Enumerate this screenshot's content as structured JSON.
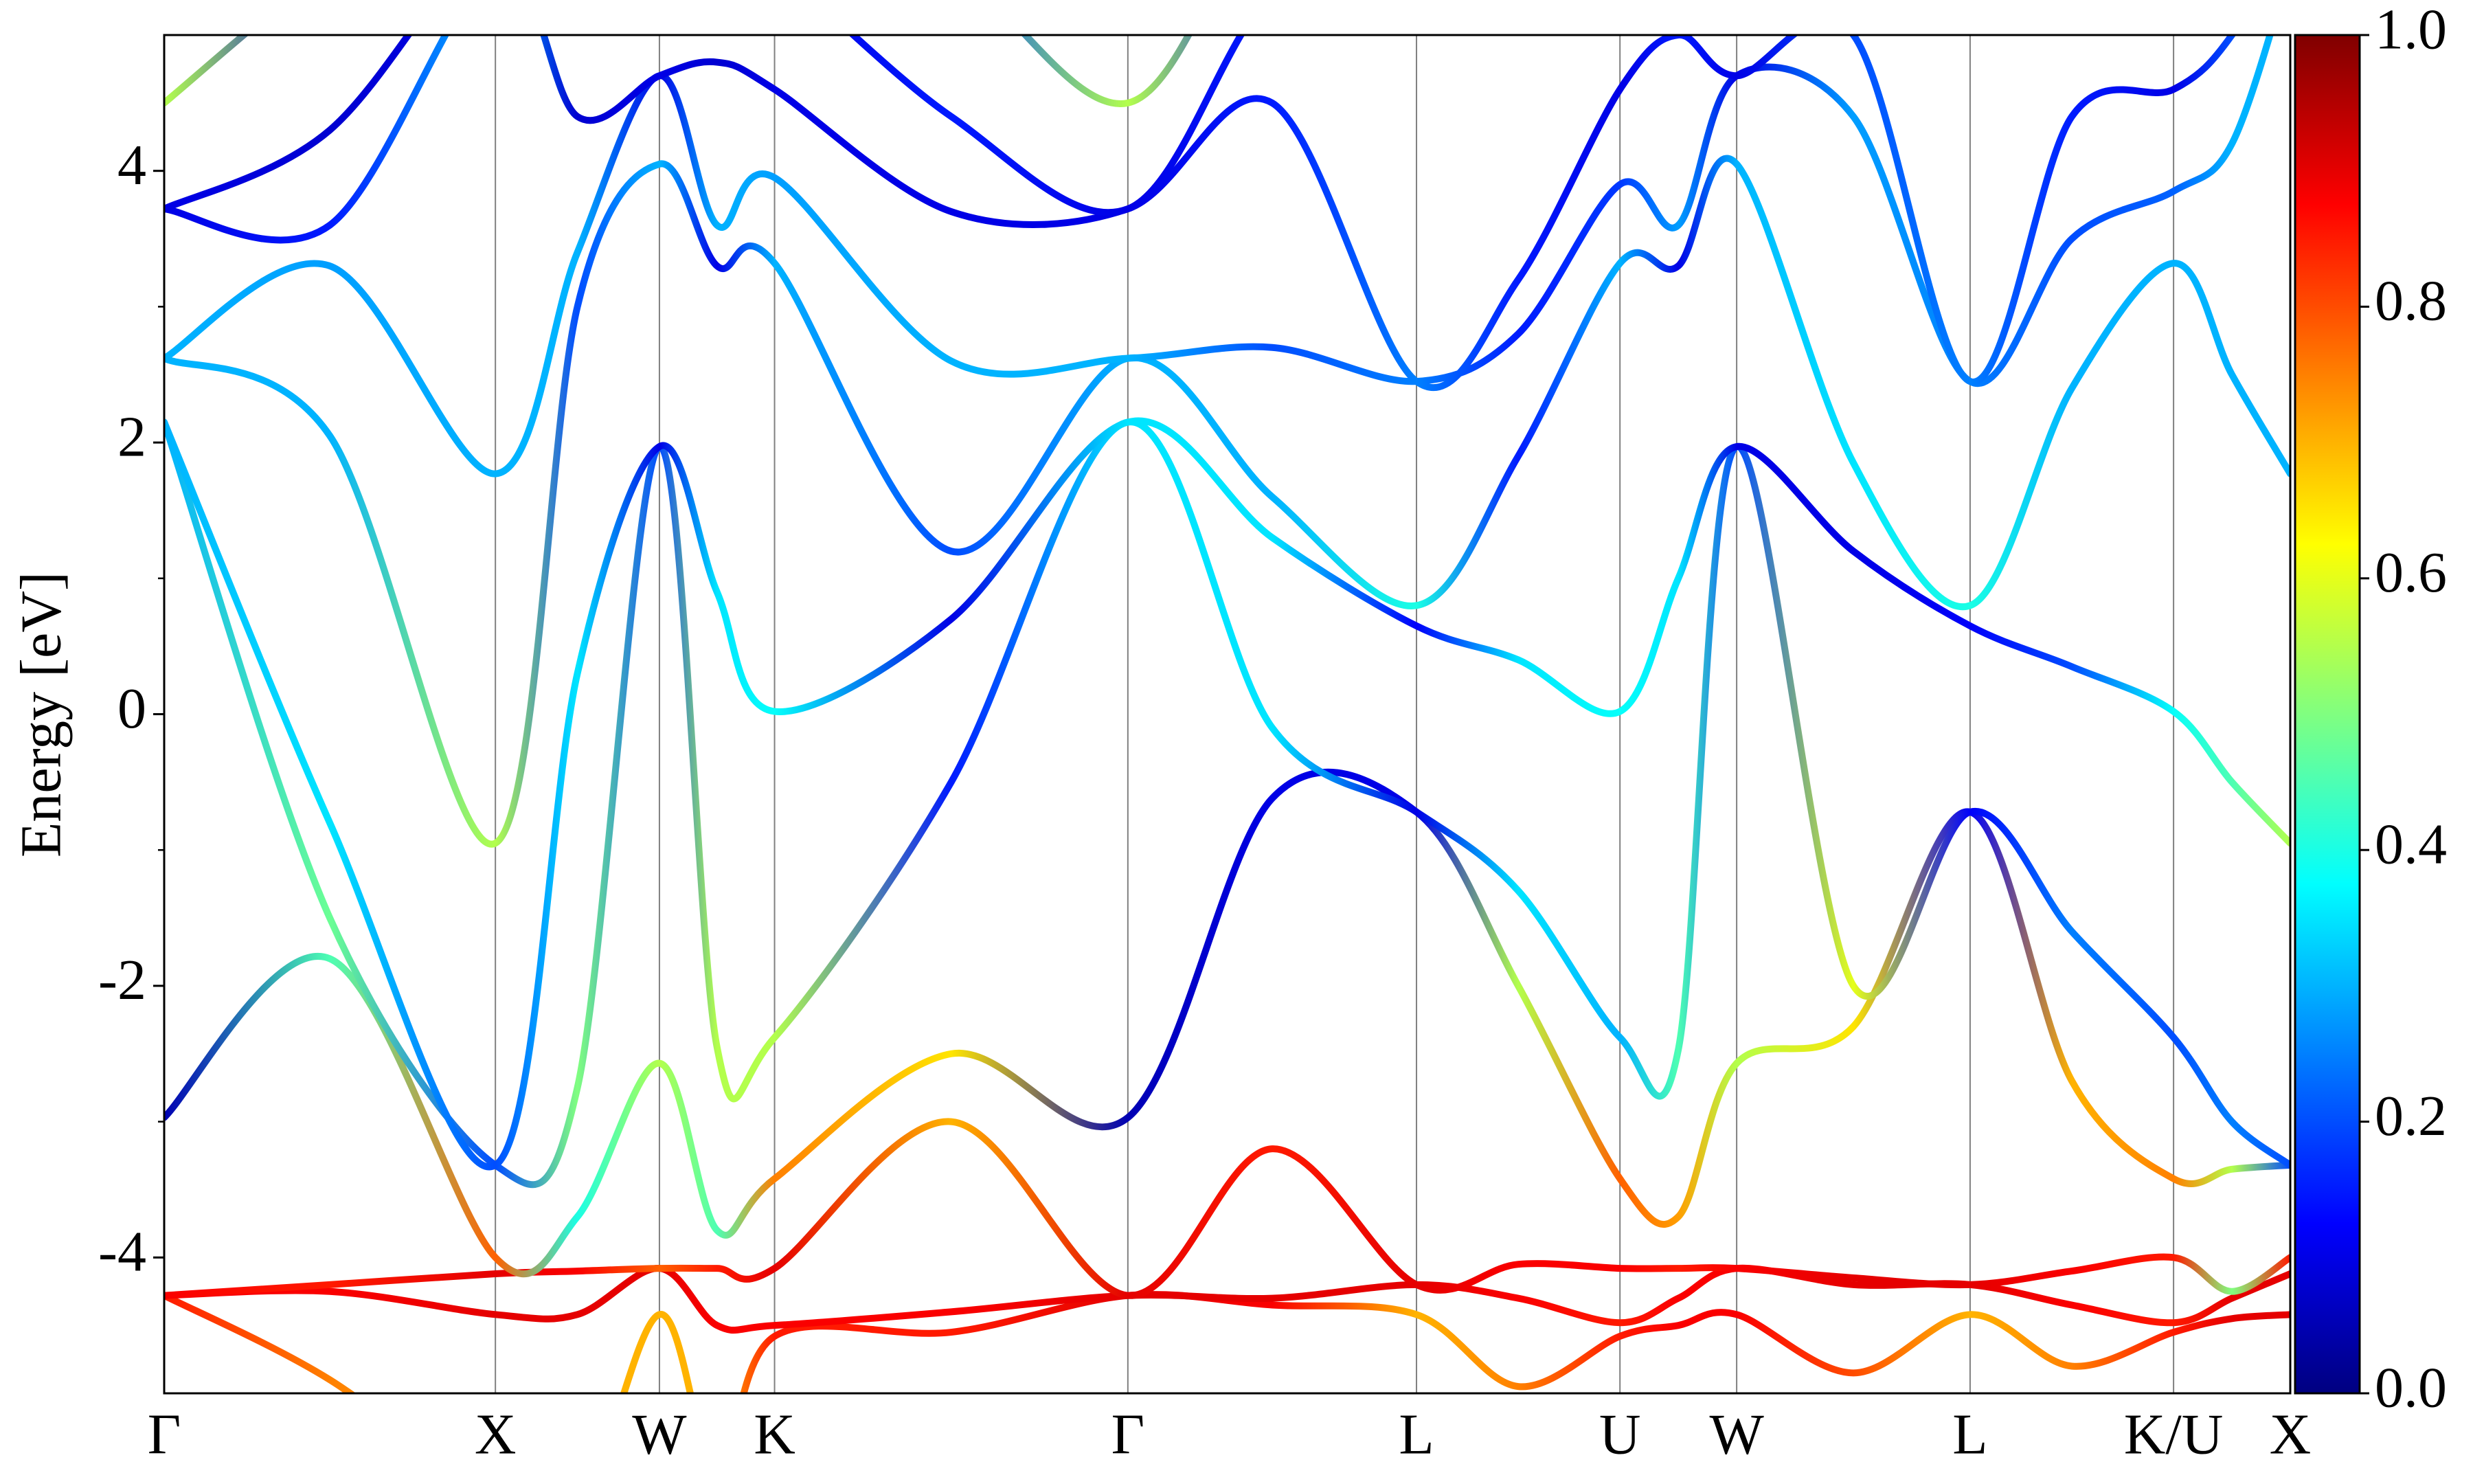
{
  "chart_data": {
    "type": "band-structure",
    "y_label": "Energy [eV]",
    "ylim": [
      -5,
      5
    ],
    "yticks": [
      -4,
      -2,
      0,
      2,
      4
    ],
    "yminorticks": [
      -3,
      -1,
      1,
      3
    ],
    "xlim": [
      0,
      13.48
    ],
    "xticks": [
      {
        "value": 0,
        "label": "Γ"
      },
      {
        "value": 2.1,
        "label": "X"
      },
      {
        "value": 3.14,
        "label": "W"
      },
      {
        "value": 3.87,
        "label": "K"
      },
      {
        "value": 6.11,
        "label": "Γ"
      },
      {
        "value": 7.94,
        "label": "L"
      },
      {
        "value": 9.23,
        "label": "U"
      },
      {
        "value": 9.97,
        "label": "W"
      },
      {
        "value": 11.45,
        "label": "L"
      },
      {
        "value": 12.74,
        "label": "K/U"
      },
      {
        "value": 13.48,
        "label": "X"
      }
    ],
    "xgrid": true,
    "colormap": "jet",
    "colorbar": {
      "lim": [
        0,
        1
      ],
      "ticks": [
        {
          "value": 0,
          "label": "0.0"
        },
        {
          "value": 0.2,
          "label": "0.2"
        },
        {
          "value": 0.4,
          "label": "0.4"
        },
        {
          "value": 0.6,
          "label": "0.6"
        },
        {
          "value": 0.8,
          "label": "0.8"
        },
        {
          "value": 1,
          "label": "1.0"
        }
      ]
    },
    "x": [
      0,
      1.05,
      2.1,
      2.62,
      3.14,
      3.505,
      3.87,
      4.99,
      6.11,
      7.025,
      7.94,
      8.585,
      9.23,
      9.6,
      9.97,
      10.71,
      11.45,
      12.095,
      12.74,
      13.11,
      13.48
    ],
    "series": [
      {
        "values": [
          -4.28,
          -4.9,
          -5.8,
          -5.9,
          -4.42,
          -5.6,
          -4.58,
          -4.55,
          -4.28,
          -4.35,
          -4.42,
          -4.95,
          -4.58,
          -4.5,
          -4.42,
          -4.85,
          -4.42,
          -4.8,
          -4.55,
          -4.45,
          -4.42
        ],
        "weights": [
          0.85,
          0.75,
          0.7,
          0.7,
          0.7,
          0.7,
          0.85,
          0.85,
          0.9,
          0.88,
          0.7,
          0.75,
          0.85,
          0.88,
          0.88,
          0.8,
          0.7,
          0.75,
          0.85,
          0.9,
          0.9
        ]
      },
      {
        "values": [
          -4.28,
          -4.25,
          -4.42,
          -4.42,
          -4.08,
          -4.5,
          -4.5,
          -4.4,
          -4.28,
          -4.3,
          -4.2,
          -4.3,
          -4.48,
          -4.3,
          -4.08,
          -4.2,
          -4.2,
          -4.35,
          -4.48,
          -4.3,
          -4.12
        ],
        "weights": [
          0.88,
          0.88,
          0.9,
          0.9,
          0.9,
          0.88,
          0.88,
          0.88,
          0.9,
          0.9,
          0.9,
          0.88,
          0.85,
          0.88,
          0.88,
          0.9,
          0.9,
          0.88,
          0.85,
          0.9,
          0.9
        ]
      },
      {
        "values": [
          -4.28,
          -4.2,
          -4.12,
          -4.1,
          -4.08,
          -4.08,
          -4.08,
          -3.0,
          -4.28,
          -3.2,
          -4.2,
          -4.05,
          -4.08,
          -4.08,
          -4.08,
          -4.15,
          -4.2,
          -4.1,
          -4.0,
          -4.25,
          -4.0
        ],
        "weights": [
          0.88,
          0.85,
          0.9,
          0.88,
          0.78,
          0.85,
          0.9,
          0.7,
          0.9,
          0.85,
          0.9,
          0.88,
          0.88,
          0.85,
          0.88,
          0.9,
          0.9,
          0.88,
          0.85,
          0.5,
          0.85
        ]
      },
      {
        "values": [
          -2.97,
          -1.8,
          -4.0,
          -3.7,
          -2.57,
          -3.8,
          -3.42,
          -2.5,
          -2.97,
          -0.62,
          -0.72,
          -2.0,
          -3.42,
          -3.7,
          -2.57,
          -2.3,
          -0.72,
          -2.7,
          -3.42,
          -3.35,
          -3.32
        ],
        "weights": [
          0.05,
          0.45,
          0.78,
          0.4,
          0.55,
          0.45,
          0.75,
          0.65,
          0.05,
          0.1,
          0.1,
          0.55,
          0.78,
          0.72,
          0.55,
          0.65,
          0.12,
          0.7,
          0.75,
          0.55,
          0.2
        ]
      },
      {
        "values": [
          2.15,
          -1.5,
          -3.32,
          -2.75,
          1.97,
          -2.45,
          -2.38,
          -0.5,
          2.15,
          -0.1,
          -0.72,
          -1.3,
          -2.38,
          -2.47,
          1.97,
          -2.0,
          -0.72,
          -1.6,
          -2.38,
          -3.0,
          -3.32
        ],
        "weights": [
          0.3,
          0.48,
          0.2,
          0.5,
          0.2,
          0.55,
          0.55,
          0.15,
          0.35,
          0.35,
          0.1,
          0.35,
          0.3,
          0.45,
          0.2,
          0.6,
          0.12,
          0.25,
          0.2,
          0.25,
          0.2
        ]
      },
      {
        "values": [
          2.15,
          -0.8,
          -3.32,
          0.3,
          1.97,
          0.9,
          0.02,
          0.7,
          2.15,
          1.3,
          0.65,
          0.4,
          0.02,
          1.0,
          1.97,
          1.2,
          0.65,
          0.35,
          0.02,
          -0.5,
          -0.95
        ],
        "weights": [
          0.3,
          0.35,
          0.2,
          0.35,
          0.1,
          0.35,
          0.38,
          0.1,
          0.35,
          0.35,
          0.12,
          0.35,
          0.38,
          0.35,
          0.1,
          0.1,
          0.12,
          0.2,
          0.38,
          0.45,
          0.55
        ]
      },
      {
        "values": [
          2.62,
          2.05,
          -0.95,
          3.0,
          4.05,
          3.3,
          3.32,
          1.2,
          2.62,
          1.6,
          0.8,
          1.9,
          3.32,
          3.3,
          4.05,
          1.85,
          0.8,
          2.4,
          3.32,
          2.5,
          1.77
        ],
        "weights": [
          0.3,
          0.3,
          0.55,
          0.2,
          0.3,
          0.1,
          0.3,
          0.2,
          0.3,
          0.3,
          0.4,
          0.15,
          0.3,
          0.1,
          0.3,
          0.35,
          0.4,
          0.3,
          0.3,
          0.3,
          0.3
        ]
      },
      {
        "values": [
          2.62,
          3.3,
          1.77,
          3.4,
          4.7,
          3.6,
          3.95,
          2.6,
          2.62,
          2.7,
          2.45,
          2.8,
          3.9,
          3.6,
          4.7,
          4.4,
          2.45,
          3.5,
          3.85,
          4.2,
          5.5
        ],
        "weights": [
          0.3,
          0.28,
          0.3,
          0.3,
          0.1,
          0.3,
          0.28,
          0.3,
          0.3,
          0.2,
          0.25,
          0.15,
          0.18,
          0.28,
          0.1,
          0.28,
          0.25,
          0.2,
          0.22,
          0.3,
          0.3
        ]
      },
      {
        "values": [
          3.72,
          3.6,
          5.5,
          4.4,
          4.7,
          4.8,
          4.6,
          3.7,
          3.72,
          4.5,
          2.45,
          3.2,
          4.6,
          5.0,
          4.7,
          5.0,
          2.45,
          4.4,
          4.6,
          5.0,
          5.8
        ],
        "weights": [
          0.1,
          0.15,
          0.3,
          0.08,
          0.1,
          0.08,
          0.1,
          0.1,
          0.1,
          0.15,
          0.25,
          0.15,
          0.1,
          0.15,
          0.1,
          0.2,
          0.25,
          0.15,
          0.1,
          0.2,
          0.3
        ]
      },
      {
        "values": [
          3.72,
          4.3,
          5.8,
          5.6,
          5.6,
          5.6,
          5.5,
          4.4,
          3.72,
          5.3,
          5.5,
          5.5,
          5.5,
          5.6,
          5.6,
          5.6,
          5.5,
          5.5,
          5.5,
          5.6,
          6.2
        ],
        "weights": [
          0.1,
          0.08,
          0.1,
          0.08,
          0.15,
          0.1,
          0.1,
          0.15,
          0.1,
          0.15,
          0.15,
          0.1,
          0.1,
          0.1,
          0.15,
          0.1,
          0.15,
          0.1,
          0.1,
          0.1,
          0.1
        ]
      },
      {
        "values": [
          4.5,
          5.5,
          6.2,
          6.0,
          6.0,
          6.0,
          6.0,
          5.5,
          4.5,
          6.0,
          6.0,
          6.0,
          6.0,
          6.0,
          6.0,
          6.0,
          6.0,
          6.0,
          6.0,
          6.0,
          6.5
        ],
        "weights": [
          0.55,
          0.1,
          0.1,
          0.1,
          0.1,
          0.1,
          0.1,
          0.2,
          0.55,
          0.15,
          0.1,
          0.1,
          0.1,
          0.1,
          0.1,
          0.1,
          0.1,
          0.1,
          0.1,
          0.1,
          0.1
        ]
      }
    ]
  }
}
